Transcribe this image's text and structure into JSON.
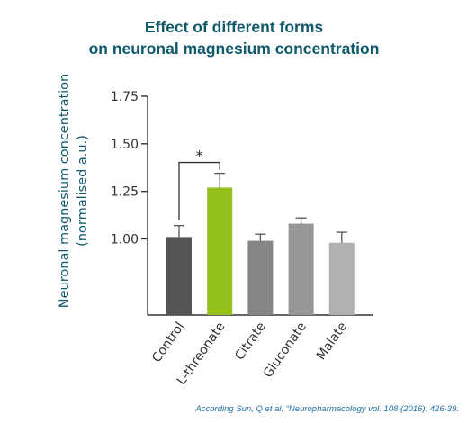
{
  "title_line1": "Effect of different forms",
  "title_line2": "on neuronal magnesium concentration",
  "footnote": "According Sun, Q et al. “Neuropharmacology vol. 108 (2016): 426-39.",
  "chart_data": {
    "type": "bar",
    "categories": [
      "Control",
      "L-threonate",
      "Citrate",
      "Gluconate",
      "Malate"
    ],
    "values": [
      1.01,
      1.27,
      0.99,
      1.08,
      0.98
    ],
    "errors": [
      0.06,
      0.075,
      0.035,
      0.03,
      0.055
    ],
    "ylabel_line1": "Neuronal magnesium concentration",
    "ylabel_line2": "(normalised a.u.)",
    "ylim": [
      0.6,
      1.75
    ],
    "yticks": [
      "1.00",
      "1.25",
      "1.50",
      "1.75"
    ],
    "ytick_values": [
      1.0,
      1.25,
      1.5,
      1.75
    ],
    "significance": {
      "from": 0,
      "to": 1,
      "label": "*"
    },
    "colors": [
      "#555555",
      "#93c01f",
      "#858585",
      "#969696",
      "#b0b0b0"
    ],
    "highlight_label_color": "#93c01f",
    "label_color": "#333333",
    "grid": false
  }
}
